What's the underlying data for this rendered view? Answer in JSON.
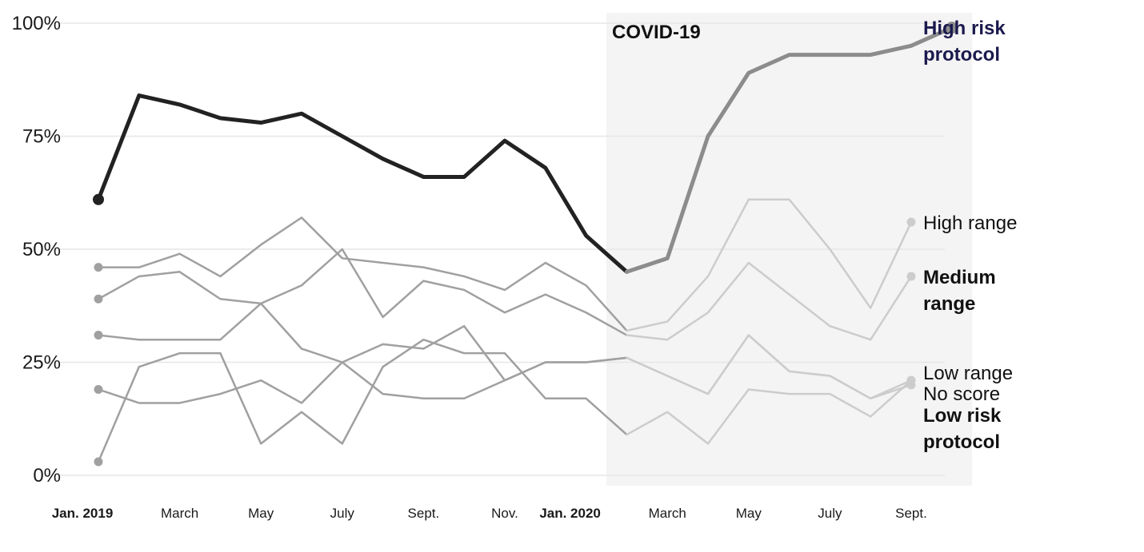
{
  "chart_data": {
    "type": "line",
    "x": [
      "2019-01",
      "2019-02",
      "2019-03",
      "2019-04",
      "2019-05",
      "2019-06",
      "2019-07",
      "2019-08",
      "2019-09",
      "2019-10",
      "2019-11",
      "2019-12",
      "2020-01",
      "2020-02",
      "2020-03",
      "2020-04",
      "2020-05",
      "2020-06",
      "2020-07",
      "2020-08",
      "2020-09",
      "2020-10"
    ],
    "x_tick_labels": [
      {
        "x": "2019-01",
        "label": "Jan. 2019",
        "bold": true
      },
      {
        "x": "2019-03",
        "label": "March",
        "bold": false
      },
      {
        "x": "2019-05",
        "label": "May",
        "bold": false
      },
      {
        "x": "2019-07",
        "label": "July",
        "bold": false
      },
      {
        "x": "2019-09",
        "label": "Sept.",
        "bold": false
      },
      {
        "x": "2019-11",
        "label": "Nov.",
        "bold": false
      },
      {
        "x": "2020-01",
        "label": "Jan. 2020",
        "bold": true
      },
      {
        "x": "2020-03",
        "label": "March",
        "bold": false
      },
      {
        "x": "2020-05",
        "label": "May",
        "bold": false
      },
      {
        "x": "2020-07",
        "label": "July",
        "bold": false
      },
      {
        "x": "2020-09",
        "label": "Sept.",
        "bold": false
      }
    ],
    "y_ticks": [
      0,
      25,
      50,
      75,
      100
    ],
    "y_tick_labels": [
      "0%",
      "25%",
      "50%",
      "75%",
      "100%"
    ],
    "ylim": [
      0,
      100
    ],
    "grid": true,
    "highlight_band": {
      "from": "2020-02",
      "to": "2020-10",
      "label": "COVID-19"
    },
    "series": [
      {
        "name": "High risk protocol",
        "label_lines": [
          "High risk",
          "protocol"
        ],
        "bold": true,
        "label_color": "#1b1a4e",
        "highlight": true,
        "values": [
          61,
          84,
          82,
          79,
          78,
          80,
          75,
          70,
          66,
          66,
          74,
          68,
          53,
          45,
          48,
          75,
          89,
          93,
          93,
          93,
          95,
          99
        ]
      },
      {
        "name": "High range",
        "label_lines": [
          "High range"
        ],
        "bold": false,
        "label_color": "#111111",
        "highlight": false,
        "values": [
          46,
          46,
          49,
          44,
          51,
          57,
          48,
          47,
          46,
          44,
          41,
          47,
          42,
          32,
          34,
          44,
          61,
          61,
          50,
          37,
          56,
          null
        ]
      },
      {
        "name": "Medium range",
        "label_lines": [
          "Medium",
          "range"
        ],
        "bold": true,
        "label_color": "#111111",
        "highlight": false,
        "values": [
          39,
          44,
          45,
          39,
          38,
          42,
          50,
          35,
          43,
          41,
          36,
          40,
          36,
          31,
          30,
          36,
          47,
          40,
          33,
          30,
          44,
          null
        ]
      },
      {
        "name": "Low range",
        "label_lines": [
          "Low range"
        ],
        "bold": false,
        "label_color": "#111111",
        "highlight": false,
        "values": [
          31,
          30,
          30,
          30,
          38,
          28,
          25,
          18,
          17,
          17,
          21,
          25,
          25,
          26,
          22,
          18,
          31,
          23,
          22,
          17,
          21,
          null
        ]
      },
      {
        "name": "No score",
        "label_lines": [
          "No score"
        ],
        "bold": false,
        "label_color": "#111111",
        "highlight": false,
        "values": [
          19,
          16,
          16,
          18,
          21,
          16,
          25,
          29,
          28,
          33,
          21,
          25,
          25,
          26,
          22,
          18,
          31,
          23,
          22,
          17,
          20,
          null
        ]
      },
      {
        "name": "Low risk protocol",
        "label_lines": [
          "Low risk",
          "protocol"
        ],
        "bold": true,
        "label_color": "#111111",
        "highlight": false,
        "values": [
          3,
          24,
          27,
          27,
          7,
          14,
          7,
          24,
          30,
          27,
          27,
          17,
          17,
          9,
          14,
          7,
          19,
          18,
          18,
          13,
          21,
          null
        ]
      }
    ],
    "colors": {
      "highlight_before": "#222222",
      "highlight_after": "#8c8c8c",
      "other_before": "#a0a0a0",
      "other_after": "#cccccc",
      "band_fill": "#f5f4f4",
      "grid": "#e6e6e6"
    }
  }
}
